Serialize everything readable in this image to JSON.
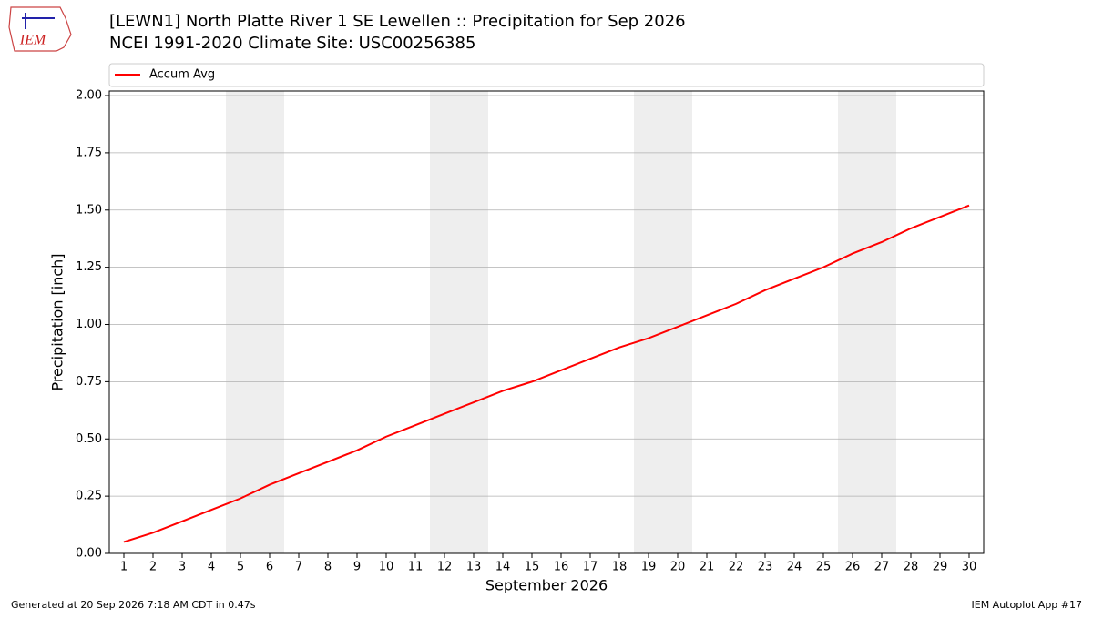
{
  "chart_data": {
    "type": "line",
    "title": "[LEWN1] North Platte River 1 SE Lewellen :: Precipitation for Sep 2026",
    "subtitle": "NCEI 1991-2020 Climate Site: USC00256385",
    "x_label": "September 2026",
    "y_label": "Precipitation [inch]",
    "x": [
      1,
      2,
      3,
      4,
      5,
      6,
      7,
      8,
      9,
      10,
      11,
      12,
      13,
      14,
      15,
      16,
      17,
      18,
      19,
      20,
      21,
      22,
      23,
      24,
      25,
      26,
      27,
      28,
      29,
      30
    ],
    "series": [
      {
        "name": "Accum Avg",
        "color": "#ff0000",
        "values": [
          0.05,
          0.09,
          0.14,
          0.19,
          0.24,
          0.3,
          0.35,
          0.4,
          0.45,
          0.51,
          0.56,
          0.61,
          0.66,
          0.71,
          0.75,
          0.8,
          0.85,
          0.9,
          0.94,
          0.99,
          1.04,
          1.09,
          1.15,
          1.2,
          1.25,
          1.31,
          1.36,
          1.42,
          1.47,
          1.52
        ]
      }
    ],
    "shaded_ranges": [
      [
        4.5,
        6.5
      ],
      [
        11.5,
        13.5
      ],
      [
        18.5,
        20.5
      ],
      [
        25.5,
        27.5
      ]
    ],
    "shade_color": "#eeeeee",
    "xlim": [
      0.5,
      30.5
    ],
    "ylim": [
      0,
      2.02
    ],
    "xticks": [
      1,
      2,
      3,
      4,
      5,
      6,
      7,
      8,
      9,
      10,
      11,
      12,
      13,
      14,
      15,
      16,
      17,
      18,
      19,
      20,
      21,
      22,
      23,
      24,
      25,
      26,
      27,
      28,
      29,
      30
    ],
    "yticks": [
      {
        "value": 0,
        "label": "0.00"
      },
      {
        "value": 0.25,
        "label": "0.25"
      },
      {
        "value": 0.5,
        "label": "0.50"
      },
      {
        "value": 0.75,
        "label": "0.75"
      },
      {
        "value": 1,
        "label": "1.00"
      },
      {
        "value": 1.25,
        "label": "1.25"
      },
      {
        "value": 1.5,
        "label": "1.50"
      },
      {
        "value": 1.75,
        "label": "1.75"
      },
      {
        "value": 2,
        "label": "2.00"
      }
    ],
    "grid": true,
    "legend": "top"
  },
  "logo": {
    "text": "IEM"
  },
  "footer": {
    "left": "Generated at 20 Sep 2026 7:18 AM CDT in 0.47s",
    "right": "IEM Autoplot App #17"
  }
}
